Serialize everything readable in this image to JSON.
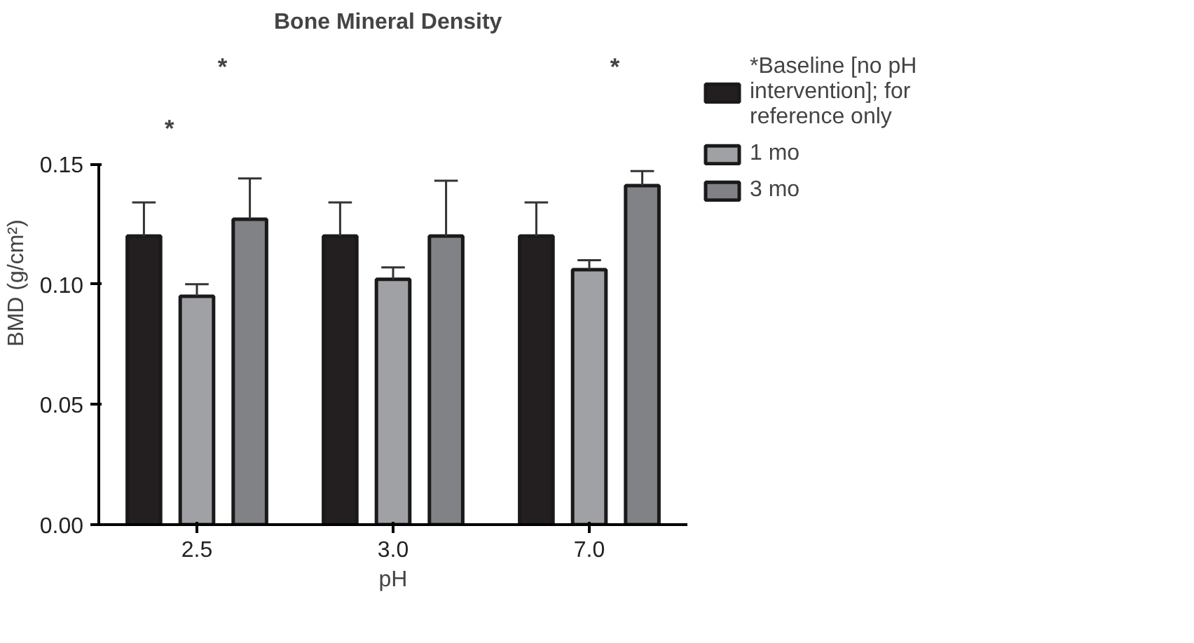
{
  "chart_data": {
    "type": "bar",
    "title": "Bone Mineral Density",
    "xlabel": "pH",
    "ylabel": "BMD (g/cm²)",
    "categories": [
      "2.5",
      "3.0",
      "7.0"
    ],
    "series": [
      {
        "name": "*Baseline [no pH intervention]; for reference only",
        "color": "#231f20",
        "values": [
          0.12,
          0.12,
          0.12
        ],
        "errors": [
          [
            0.12,
            0.134
          ],
          [
            0.12,
            0.134
          ],
          [
            0.12,
            0.134
          ]
        ]
      },
      {
        "name": "1 mo",
        "color": "#a0a1a5",
        "values": [
          0.095,
          0.102,
          0.106
        ],
        "errors": [
          [
            0.095,
            0.1
          ],
          [
            0.102,
            0.107
          ],
          [
            0.106,
            0.11
          ]
        ]
      },
      {
        "name": "3 mo",
        "color": "#818286",
        "values": [
          0.127,
          0.12,
          0.141
        ],
        "errors": [
          [
            0.127,
            0.144
          ],
          [
            0.12,
            0.143
          ],
          [
            0.141,
            0.147
          ]
        ]
      }
    ],
    "annotations": [
      "*",
      "*",
      "*"
    ],
    "ylim": [
      0,
      0.15
    ],
    "yticks": [
      {
        "value": 0,
        "label": "0.00"
      },
      0.05,
      {
        "value": 0.1,
        "label": "0.10"
      },
      0.15
    ],
    "grid": false,
    "legend": "right"
  }
}
